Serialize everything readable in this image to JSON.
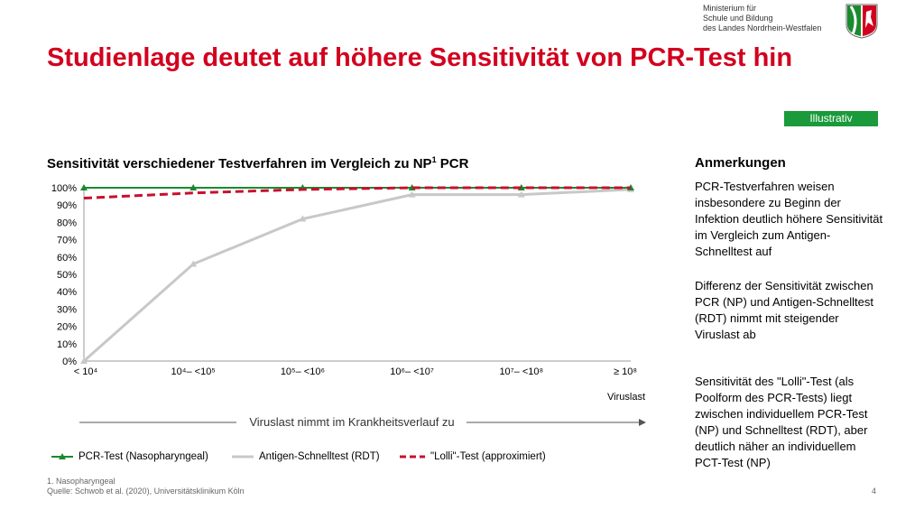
{
  "header": {
    "title": "Studienlage deutet auf höhere Sensitivität von PCR-Test hin",
    "ministry": [
      "Ministerium für",
      "Schule und Bildung",
      "des Landes Nordrhein-Westfalen"
    ],
    "badge": "Illustrativ"
  },
  "chart_data": {
    "type": "line",
    "title": "Sensitivität verschiedener Testverfahren im Vergleich zu NP",
    "title_sup": "1",
    "title_suffix": " PCR",
    "categories": [
      "< 10⁴",
      "10⁴– <10⁵",
      "10⁵– <10⁶",
      "10⁶– <10⁷",
      "10⁷– <10⁸",
      "≥ 10⁸"
    ],
    "xlabel": "Viruslast",
    "ylabel": "",
    "yticks": [
      "0%",
      "10%",
      "20%",
      "30%",
      "40%",
      "50%",
      "60%",
      "70%",
      "80%",
      "90%",
      "100%"
    ],
    "ylim": [
      0,
      100
    ],
    "arrow_label": "Viruslast nimmt im Krankheitsverlauf zu",
    "series": [
      {
        "name": "PCR-Test (Nasopharyngeal)",
        "color": "#1a8a2e",
        "style": "solid",
        "values": [
          100,
          100,
          100,
          100,
          100,
          100
        ]
      },
      {
        "name": "Antigen-Schnelltest (RDT)",
        "color": "#c8c8c8",
        "style": "solid",
        "values": [
          0,
          56,
          82,
          96,
          96,
          99
        ]
      },
      {
        "name": "\"Lolli\"-Test (approximiert)",
        "color": "#c8102e",
        "style": "dashed",
        "values": [
          94,
          97,
          99,
          100,
          100,
          100
        ]
      }
    ]
  },
  "notes": {
    "title": "Anmerkungen",
    "items": [
      "PCR-Testverfahren weisen insbesondere zu Beginn der Infektion deutlich höhere Sensitivität im Vergleich zum Antigen-Schnelltest auf",
      "Differenz der Sensitivität zwischen PCR (NP) und Antigen-Schnelltest (RDT) nimmt mit steigender Viruslast ab",
      "Sensitivität des \"Lolli\"-Test (als Poolform des PCR-Tests) liegt zwischen individuellem PCR-Test (NP) und Schnelltest (RDT), aber deutlich näher an individuellem PCT-Test (NP)"
    ]
  },
  "footer": {
    "footnote": "1. Nasopharyngeal",
    "source": "Quelle: Schwob et al. (2020), Universitätsklinikum Köln",
    "page": "4"
  }
}
